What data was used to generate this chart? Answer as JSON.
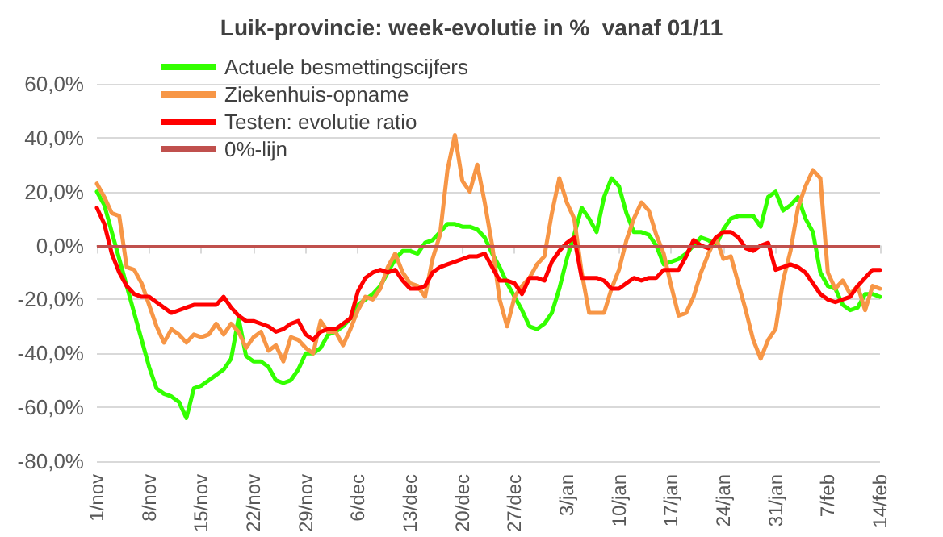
{
  "chart_data": {
    "type": "line",
    "title": "Luik-provincie: week-evolutie in %  vanaf 01/11",
    "categories": [
      "1/nov",
      null,
      null,
      null,
      null,
      null,
      null,
      "8/nov",
      null,
      null,
      null,
      null,
      null,
      null,
      "15/nov",
      null,
      null,
      null,
      null,
      null,
      null,
      "22/nov",
      null,
      null,
      null,
      null,
      null,
      null,
      "29/nov",
      null,
      null,
      null,
      null,
      null,
      null,
      "6/dec",
      null,
      null,
      null,
      null,
      null,
      null,
      "13/dec",
      null,
      null,
      null,
      null,
      null,
      null,
      "20/dec",
      null,
      null,
      null,
      null,
      null,
      null,
      "27/dec",
      null,
      null,
      null,
      null,
      null,
      null,
      "3/jan",
      null,
      null,
      null,
      null,
      null,
      null,
      "10/jan",
      null,
      null,
      null,
      null,
      null,
      null,
      "17/jan",
      null,
      null,
      null,
      null,
      null,
      null,
      "24/jan",
      null,
      null,
      null,
      null,
      null,
      null,
      "31/jan",
      null,
      null,
      null,
      null,
      null,
      null,
      "7/feb",
      null,
      null,
      null,
      null,
      null,
      null,
      "14/feb"
    ],
    "series": [
      {
        "name": "Actuele besmettingscijfers",
        "color": "#33ff00",
        "values": [
          20,
          15,
          5,
          -5,
          -15,
          -25,
          -35,
          -45,
          -53,
          -55,
          -56,
          -58,
          -64,
          -53,
          -52,
          -50,
          -48,
          -46,
          -42,
          -27,
          -41,
          -43,
          -43,
          -45,
          -50,
          -51,
          -50,
          -46,
          -40,
          -40,
          -38,
          -33,
          -32,
          -30,
          -27,
          -22,
          -20,
          -18,
          -15,
          -10,
          -5,
          -2,
          -2,
          -3,
          1,
          2,
          5,
          8,
          8,
          7,
          7,
          6,
          3,
          -3,
          -8,
          -14,
          -19,
          -24,
          -30,
          -31,
          -29,
          -25,
          -16,
          -5,
          4,
          14,
          10,
          5,
          18,
          25,
          22,
          12,
          5,
          5,
          4,
          0,
          -7,
          -6,
          -5,
          -3,
          0,
          3,
          2,
          0,
          6,
          10,
          11,
          11,
          11,
          7,
          18,
          20,
          13,
          15,
          18,
          10,
          5,
          -10,
          -15,
          -16,
          -22,
          -24,
          -23,
          -18,
          -18,
          -19
        ]
      },
      {
        "name": "Ziekenhuis-opname",
        "color": "#f79646",
        "values": [
          23,
          18,
          12,
          11,
          -8,
          -9,
          -14,
          -22,
          -30,
          -36,
          -31,
          -33,
          -36,
          -33,
          -34,
          -33,
          -29,
          -33,
          -29,
          -32,
          -38,
          -34,
          -32,
          -39,
          -37,
          -43,
          -34,
          -35,
          -38,
          -40,
          -28,
          -32,
          -32,
          -37,
          -31,
          -24,
          -19,
          -20,
          -16,
          -8,
          -3,
          -10,
          -14,
          -15,
          -19,
          -5,
          4,
          28,
          41,
          24,
          20,
          30,
          16,
          0,
          -20,
          -30,
          -19,
          -15,
          -12,
          -7,
          -4,
          12,
          25,
          16,
          10,
          -10,
          -25,
          -25,
          -25,
          -16,
          -9,
          2,
          10,
          16,
          13,
          4,
          -3,
          -15,
          -26,
          -25,
          -19,
          -10,
          -3,
          3,
          -5,
          -4,
          -14,
          -24,
          -35,
          -42,
          -35,
          -31,
          -13,
          -2,
          14,
          22,
          28,
          25,
          -10,
          -16,
          -13,
          -18,
          -15,
          -24,
          -15,
          -16
        ]
      },
      {
        "name": "Testen: evolutie ratio",
        "color": "#ff0000",
        "values": [
          14,
          8,
          -3,
          -10,
          -15,
          -18,
          -19,
          -19,
          -21,
          -23,
          -25,
          -24,
          -23,
          -22,
          -22,
          -22,
          -22,
          -19,
          -23,
          -26,
          -28,
          -28,
          -29,
          -30,
          -32,
          -31,
          -29,
          -28,
          -33,
          -35,
          -32,
          -31,
          -31,
          -29,
          -27,
          -17,
          -12,
          -10,
          -9,
          -10,
          -9,
          -13,
          -16,
          -16,
          -15,
          -10,
          -8,
          -7,
          -6,
          -5,
          -4,
          -4,
          -3,
          -8,
          -13,
          -13,
          -14,
          -18,
          -12,
          -12,
          -13,
          -6,
          -2,
          1,
          3,
          -12,
          -12,
          -12,
          -13,
          -16,
          -16,
          -14,
          -12,
          -13,
          -12,
          -12,
          -9,
          -9,
          -9,
          -4,
          2,
          0,
          -1,
          3,
          5,
          5,
          3,
          -1,
          -2,
          0,
          1,
          -9,
          -8,
          -7,
          -8,
          -10,
          -14,
          -18,
          -20,
          -21,
          -20,
          -19,
          -15,
          -12,
          -9,
          -9
        ]
      }
    ],
    "ref_lines": [
      {
        "axis": "y",
        "value": 0,
        "label": "0%-lijn",
        "color": "#c0504d"
      }
    ],
    "ylim": [
      -80,
      60
    ],
    "yticks": [
      {
        "value": -80,
        "label": "-80,0%"
      },
      {
        "value": -60,
        "label": "-60,0%"
      },
      {
        "value": -40,
        "label": "-40,0%"
      },
      {
        "value": -20,
        "label": "-20,0%"
      },
      {
        "value": 0,
        "label": "0,0%"
      },
      {
        "value": 20,
        "label": "20,0%"
      },
      {
        "value": 40,
        "label": "40,0%"
      },
      {
        "value": 60,
        "label": "60,0%"
      }
    ],
    "grid": "y",
    "legend": "top left",
    "marker": "none",
    "line_style": "solid"
  }
}
